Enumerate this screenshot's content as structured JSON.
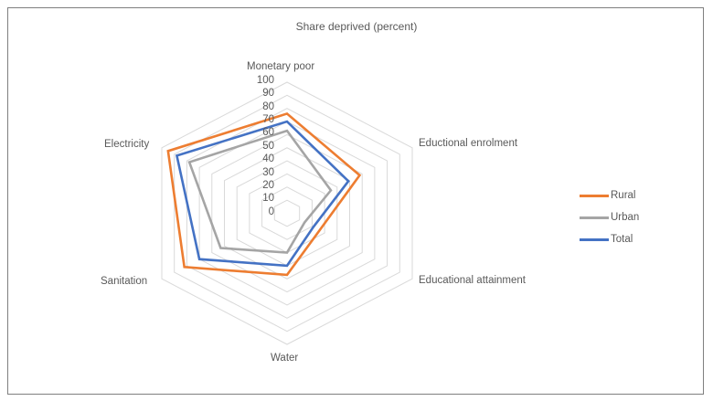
{
  "chart_data": {
    "type": "radar",
    "title": "Share deprived (percent)",
    "categories": [
      "Monetary poor",
      "Eductional enrolment",
      "Educational attainment",
      "Water",
      "Sanitation",
      "Electricity"
    ],
    "series": [
      {
        "name": "Rural",
        "color": "#ED7D31",
        "values": [
          76,
          58,
          26,
          47,
          82,
          95
        ]
      },
      {
        "name": "Urban",
        "color": "#A5A5A5",
        "values": [
          63,
          35,
          14,
          30,
          53,
          78
        ]
      },
      {
        "name": "Total",
        "color": "#4472C4",
        "values": [
          70,
          49,
          21,
          40,
          70,
          88
        ]
      }
    ],
    "radial_ticks": [
      "0",
      "10",
      "20",
      "30",
      "40",
      "50",
      "60",
      "70",
      "80",
      "90",
      "100"
    ],
    "rlim": [
      0,
      100
    ],
    "grid": true,
    "legend_position": "right"
  }
}
